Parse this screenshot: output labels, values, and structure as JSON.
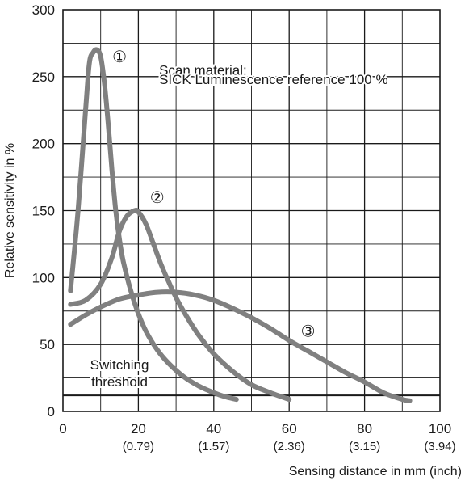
{
  "chart_data": {
    "type": "line",
    "xlabel": "Sensing distance in mm (inch)",
    "ylabel": "Relative sensitivity in %",
    "xlim": [
      0,
      100
    ],
    "ylim": [
      0,
      300
    ],
    "grid": true,
    "x_ticks": [
      {
        "value": 0,
        "label": "0",
        "sub": ""
      },
      {
        "value": 20,
        "label": "20",
        "sub": "(0.79)"
      },
      {
        "value": 40,
        "label": "40",
        "sub": "(1.57)"
      },
      {
        "value": 60,
        "label": "60",
        "sub": "(2.36)"
      },
      {
        "value": 80,
        "label": "80",
        "sub": "(3.15)"
      },
      {
        "value": 100,
        "label": "100",
        "sub": "(3.94)"
      }
    ],
    "y_ticks": [
      0,
      50,
      100,
      150,
      200,
      250,
      300
    ],
    "annotation": {
      "line1": "Scan material:",
      "line2": "SICK Luminescence reference 100 %"
    },
    "threshold": {
      "label_line1": "Switching",
      "label_line2": "threshold",
      "y": 12
    },
    "series_color": "#808080",
    "series": [
      {
        "marker": "①",
        "marker_pos": [
          15,
          265
        ],
        "x": [
          2,
          4,
          6,
          7,
          8,
          9,
          10,
          11,
          12,
          13,
          14,
          15,
          16,
          18,
          20,
          22,
          25,
          28,
          32,
          36,
          40,
          43,
          46
        ],
        "y": [
          90,
          150,
          225,
          260,
          268,
          270,
          265,
          245,
          215,
          180,
          150,
          128,
          112,
          90,
          73,
          60,
          46,
          36,
          26,
          19,
          14,
          11,
          9
        ]
      },
      {
        "marker": "②",
        "marker_pos": [
          25,
          160
        ],
        "x": [
          2,
          6,
          10,
          13,
          15,
          17,
          19,
          20,
          22,
          24,
          26,
          28,
          30,
          33,
          36,
          40,
          45,
          50,
          55,
          60
        ],
        "y": [
          80,
          83,
          95,
          115,
          135,
          146,
          150,
          149,
          140,
          125,
          110,
          97,
          85,
          70,
          57,
          43,
          30,
          20,
          14,
          9
        ]
      },
      {
        "marker": "③",
        "marker_pos": [
          65,
          60
        ],
        "x": [
          2,
          6,
          10,
          15,
          20,
          25,
          30,
          35,
          40,
          45,
          50,
          55,
          60,
          65,
          70,
          75,
          80,
          85,
          90,
          92
        ],
        "y": [
          65,
          72,
          78,
          84,
          87,
          89,
          89,
          87,
          83,
          77,
          70,
          62,
          53,
          45,
          37,
          29,
          22,
          14,
          9,
          8
        ]
      }
    ]
  }
}
